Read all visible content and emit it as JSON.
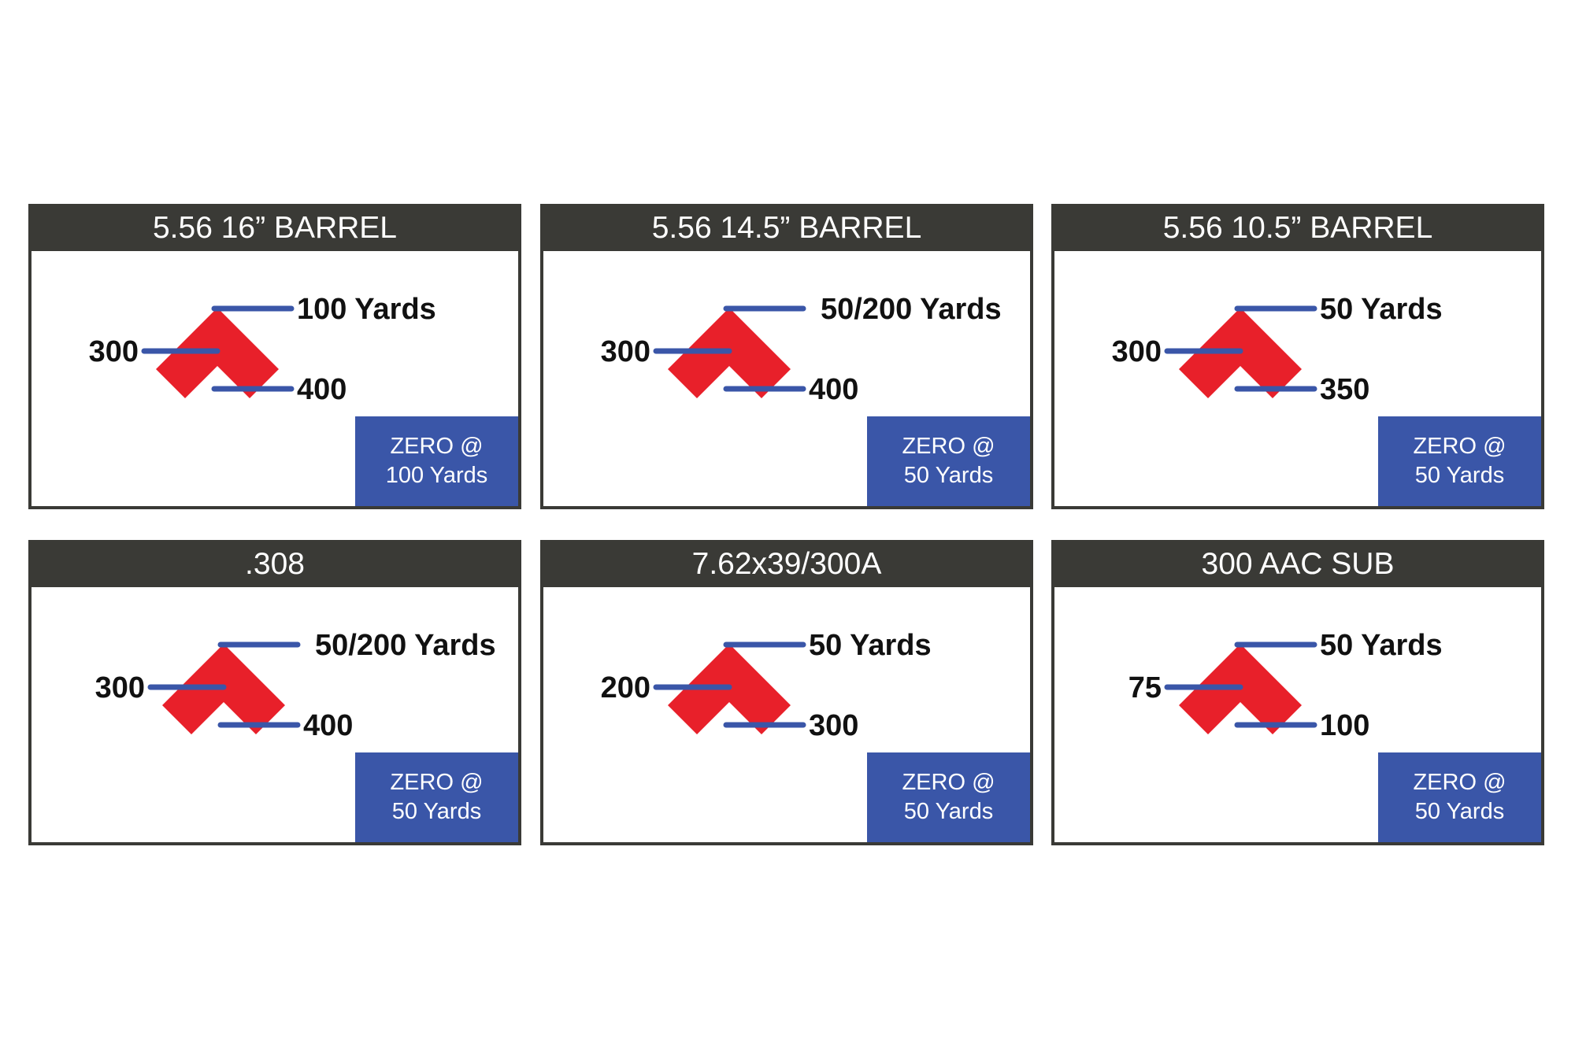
{
  "colors": {
    "header": "#3a3a36",
    "accent_blue": "#3a56a8",
    "chevron_red": "#e8202a"
  },
  "cards": [
    {
      "title": "5.56 16” BARREL",
      "top": "100 Yards",
      "left": "300",
      "bottom": "400",
      "zero_line1": "ZERO @",
      "zero_line2": "100 Yards"
    },
    {
      "title": "5.56 14.5” BARREL",
      "top": "50/200 Yards",
      "left": "300",
      "bottom": "400",
      "zero_line1": "ZERO @",
      "zero_line2": "50 Yards"
    },
    {
      "title": "5.56 10.5” BARREL",
      "top": "50 Yards",
      "left": "300",
      "bottom": "350",
      "zero_line1": "ZERO @",
      "zero_line2": "50 Yards"
    },
    {
      "title": ".308",
      "top": "50/200 Yards",
      "left": "300",
      "bottom": "400",
      "zero_line1": "ZERO @",
      "zero_line2": "50 Yards"
    },
    {
      "title": "7.62x39/300A",
      "top": "50 Yards",
      "left": "200",
      "bottom": "300",
      "zero_line1": "ZERO @",
      "zero_line2": "50 Yards"
    },
    {
      "title": "300 AAC SUB",
      "top": "50 Yards",
      "left": "75",
      "bottom": "100",
      "zero_line1": "ZERO @",
      "zero_line2": "50 Yards"
    }
  ]
}
